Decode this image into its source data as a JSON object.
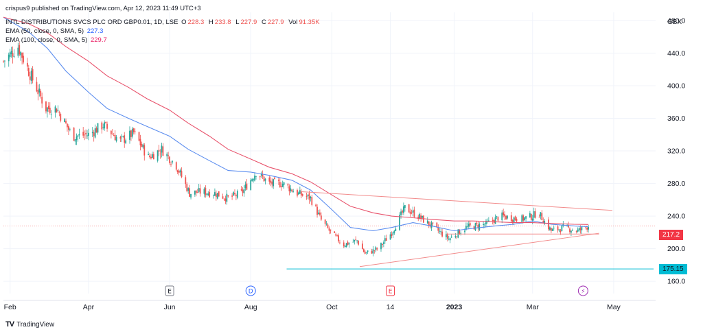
{
  "header": {
    "published": "crispus9 published on TradingView.com, Apr 12, 2023 11:49 UTC+3",
    "symbol": "INTL DISTRIBUTIONS SVCS PLC ORD GBP0.01, 1D, LSE",
    "ohlc": [
      {
        "label": "O",
        "value": "228.3"
      },
      {
        "label": "H",
        "value": "233.8"
      },
      {
        "label": "L",
        "value": "227.9"
      },
      {
        "label": "C",
        "value": "227.9"
      },
      {
        "label": "Vol",
        "value": "91.35K"
      }
    ],
    "ema50_label": "EMA (50, close, 0, SMA, 5)",
    "ema50_value": "227.3",
    "ema100_label": "EMA (100, close, 0, SMA, 5)",
    "ema100_value": "229.7",
    "currency": "GBX"
  },
  "footer": {
    "logo_text": "TradingView"
  },
  "colors": {
    "up": "#26a69a",
    "down": "#ef5350",
    "ema50": "#5b8def",
    "ema100": "#e8536c",
    "trendline": "#f28b8b",
    "support": "#00bcd4",
    "grid": "#f0f3fa",
    "text": "#131722"
  },
  "chart_data": {
    "type": "line",
    "y_range": [
      145,
      490
    ],
    "y_ticks": [
      "480.0",
      "440.0",
      "400.0",
      "360.0",
      "320.0",
      "280.0",
      "240.0",
      "200.0",
      "160.0"
    ],
    "x_ticks": [
      "Feb",
      "Apr",
      "Jun",
      "Aug",
      "Oct",
      "14",
      "2023",
      "Mar",
      "May"
    ],
    "event_markers": [
      "E",
      "D",
      "E",
      "⚡"
    ],
    "price_labels": [
      {
        "text": "217.2",
        "value": 217.2,
        "color": "#f23645"
      },
      {
        "text": "175.15",
        "value": 175.15,
        "color": "#00bcd4"
      }
    ],
    "series": [
      {
        "name": "EMA (50, close, 0, SMA, 5)",
        "x": [
          "2022-01-27",
          "2022-02-15",
          "2022-03-01",
          "2022-03-15",
          "2022-04-01",
          "2022-04-15",
          "2022-05-01",
          "2022-05-15",
          "2022-06-01",
          "2022-06-15",
          "2022-07-01",
          "2022-07-15",
          "2022-08-01",
          "2022-08-15",
          "2022-09-01",
          "2022-09-15",
          "2022-10-01",
          "2022-10-15",
          "2022-11-01",
          "2022-11-15",
          "2022-12-01",
          "2022-12-15",
          "2023-01-01",
          "2023-01-15",
          "2023-02-01",
          "2023-02-15",
          "2023-03-01",
          "2023-03-15",
          "2023-04-01",
          "2023-04-12"
        ],
        "values": [
          484,
          466,
          446,
          418,
          392,
          372,
          360,
          350,
          338,
          322,
          308,
          296,
          294,
          290,
          284,
          272,
          248,
          226,
          222,
          226,
          232,
          228,
          222,
          225,
          228,
          230,
          234,
          230,
          228,
          227
        ]
      },
      {
        "name": "EMA (100, close, 0, SMA, 5)",
        "x": [
          "2022-01-27",
          "2022-02-15",
          "2022-03-01",
          "2022-03-15",
          "2022-04-01",
          "2022-04-15",
          "2022-05-01",
          "2022-05-15",
          "2022-06-01",
          "2022-06-15",
          "2022-07-01",
          "2022-07-15",
          "2022-08-01",
          "2022-08-15",
          "2022-09-01",
          "2022-09-15",
          "2022-10-01",
          "2022-10-15",
          "2022-11-01",
          "2022-11-15",
          "2022-12-01",
          "2022-12-15",
          "2023-01-01",
          "2023-01-15",
          "2023-02-01",
          "2023-02-15",
          "2023-03-01",
          "2023-03-15",
          "2023-04-01",
          "2023-04-12"
        ],
        "values": [
          484,
          476,
          465,
          448,
          430,
          412,
          398,
          384,
          370,
          354,
          338,
          322,
          310,
          300,
          292,
          282,
          266,
          252,
          244,
          240,
          238,
          236,
          234,
          234,
          233,
          232,
          232,
          231,
          230,
          229.7
        ]
      },
      {
        "name": "Close",
        "x": [
          "2022-01-27",
          "2022-02-07",
          "2022-02-15",
          "2022-02-28",
          "2022-03-08",
          "2022-03-20",
          "2022-04-01",
          "2022-04-12",
          "2022-04-25",
          "2022-05-05",
          "2022-05-16",
          "2022-05-26",
          "2022-06-06",
          "2022-06-16",
          "2022-06-25",
          "2022-07-05",
          "2022-07-15",
          "2022-07-25",
          "2022-08-05",
          "2022-08-15",
          "2022-08-25",
          "2022-09-05",
          "2022-09-15",
          "2022-09-23",
          "2022-10-01",
          "2022-10-10",
          "2022-10-20",
          "2022-10-26",
          "2022-11-05",
          "2022-11-15",
          "2022-11-25",
          "2022-12-05",
          "2022-12-15",
          "2022-12-28",
          "2023-01-10",
          "2023-01-25",
          "2023-02-05",
          "2023-02-20",
          "2023-03-01",
          "2023-03-05",
          "2023-03-15",
          "2023-03-25",
          "2023-04-04",
          "2023-04-12"
        ],
        "values": [
          430,
          448,
          418,
          372,
          372,
          338,
          340,
          352,
          332,
          342,
          312,
          322,
          302,
          268,
          270,
          268,
          262,
          268,
          294,
          280,
          280,
          268,
          262,
          235,
          218,
          205,
          210,
          194,
          200,
          220,
          250,
          240,
          228,
          212,
          226,
          230,
          240,
          236,
          240,
          245,
          222,
          226,
          222,
          227.9
        ]
      }
    ],
    "trendlines": [
      {
        "name": "descending resistance",
        "from": {
          "x": "2022-09-08",
          "y": 270
        },
        "to": {
          "x": "2023-04-30",
          "y": 247
        }
      },
      {
        "name": "ascending support",
        "from": {
          "x": "2022-10-22",
          "y": 178
        },
        "to": {
          "x": "2023-04-20",
          "y": 219
        }
      },
      {
        "name": "horizontal",
        "from": {
          "x": "2022-12-26",
          "y": 218
        },
        "to": {
          "x": "2023-04-20",
          "y": 218
        }
      },
      {
        "name": "horizontal support",
        "from": {
          "x": "2022-08-28",
          "y": 175.15
        },
        "to": {
          "x": "2023-05-31",
          "y": 175.15
        }
      }
    ],
    "reference_line": 227.9,
    "grid": true,
    "legend": "top-left"
  }
}
